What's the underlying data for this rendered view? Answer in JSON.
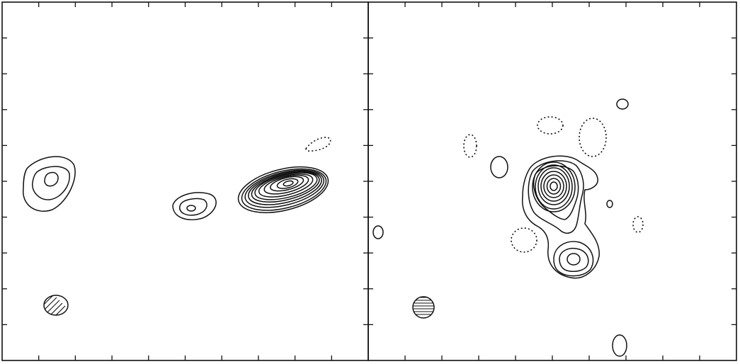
{
  "figure": {
    "type": "radio contour maps",
    "panel_count": 2,
    "ticks_per_side": 10,
    "contour_style": {
      "positive": "solid",
      "negative": "dotted"
    },
    "colors": {
      "ink": "#111111",
      "background": "#ffffff"
    }
  },
  "panels": [
    {
      "id": "left",
      "sources": [
        "compact-west",
        "compact-center",
        "bright-east"
      ],
      "negative_features": 1,
      "beam_hatch": "diagonal"
    },
    {
      "id": "right",
      "sources": [
        "core",
        "secondary-south"
      ],
      "negative_features": 5,
      "beam_hatch": "horizontal"
    }
  ]
}
